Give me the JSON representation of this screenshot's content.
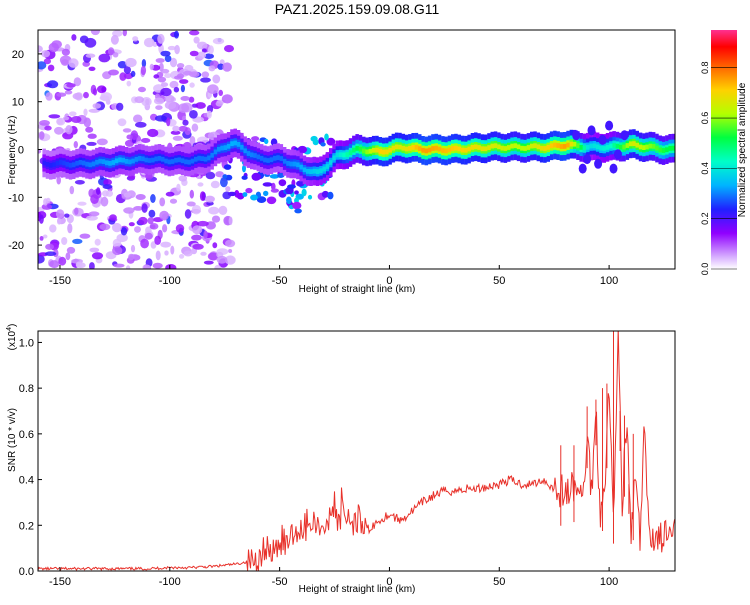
{
  "title": "PAZ1.2025.159.09.08.G11",
  "chart_data": [
    {
      "type": "heatmap",
      "xlabel": "Height of straight line (km)",
      "ylabel": "Frequency (Hz)",
      "xlim": [
        -160,
        130
      ],
      "ylim": [
        -25,
        25
      ],
      "xticks": [
        -150,
        -100,
        -50,
        0,
        50,
        100
      ],
      "yticks": [
        -20,
        -10,
        0,
        10,
        20
      ],
      "colorbar": {
        "label": "Normalized spectral amplitude",
        "range": [
          0,
          0.95
        ],
        "ticks": [
          "0.0",
          "0.2",
          "0.4",
          "0.6",
          "0.8"
        ],
        "tick_values": [
          0.0,
          0.2,
          0.4,
          0.6,
          0.8
        ],
        "colors": [
          "#ffffff",
          "#a000ff",
          "#2020ff",
          "#00c8ff",
          "#00ff80",
          "#c8ff00",
          "#ffd000",
          "#ff6000",
          "#ff0000",
          "#ff40a0"
        ]
      },
      "ridge": [
        {
          "x": -155,
          "f": -3,
          "a": 0.25
        },
        {
          "x": -140,
          "f": -3,
          "a": 0.3
        },
        {
          "x": -125,
          "f": -2.5,
          "a": 0.35
        },
        {
          "x": -110,
          "f": -2,
          "a": 0.3
        },
        {
          "x": -95,
          "f": -2.5,
          "a": 0.3
        },
        {
          "x": -85,
          "f": -2,
          "a": 0.3
        },
        {
          "x": -72,
          "f": 1.5,
          "a": 0.35
        },
        {
          "x": -60,
          "f": -2,
          "a": 0.3
        },
        {
          "x": -50,
          "f": -2,
          "a": 0.3
        },
        {
          "x": -40,
          "f": -4,
          "a": 0.35
        },
        {
          "x": -33,
          "f": -5,
          "a": 0.4
        },
        {
          "x": -25,
          "f": -1.5,
          "a": 0.4
        },
        {
          "x": -15,
          "f": 0,
          "a": 0.55
        },
        {
          "x": -5,
          "f": -0.5,
          "a": 0.75
        },
        {
          "x": 5,
          "f": 0.5,
          "a": 0.7
        },
        {
          "x": 15,
          "f": 0,
          "a": 0.8
        },
        {
          "x": 30,
          "f": 0,
          "a": 0.75
        },
        {
          "x": 45,
          "f": 0.5,
          "a": 0.7
        },
        {
          "x": 60,
          "f": 0.5,
          "a": 0.65
        },
        {
          "x": 72,
          "f": 0.5,
          "a": 0.75
        },
        {
          "x": 80,
          "f": 1,
          "a": 0.8
        },
        {
          "x": 90,
          "f": 0.5,
          "a": 0.4
        },
        {
          "x": 100,
          "f": 0.5,
          "a": 0.45
        },
        {
          "x": 110,
          "f": 1,
          "a": 0.7
        },
        {
          "x": 125,
          "f": 0,
          "a": 0.55
        }
      ]
    },
    {
      "type": "line",
      "xlabel": "Height of straight line (km)",
      "ylabel": "SNR (10 * v/v)",
      "yscale_label": "(x10",
      "yscale_exp": "4",
      "yscale_close": ")",
      "xlim": [
        -160,
        130
      ],
      "ylim": [
        0,
        1.05
      ],
      "xticks": [
        -150,
        -100,
        -50,
        0,
        50,
        100
      ],
      "yticks": [
        "0.0",
        "0.2",
        "0.4",
        "0.6",
        "0.8",
        "1.0"
      ],
      "ytick_values": [
        0.0,
        0.2,
        0.4,
        0.6,
        0.8,
        1.0
      ],
      "color": "#e8312a",
      "x": [
        -160,
        -150,
        -140,
        -130,
        -120,
        -110,
        -100,
        -90,
        -80,
        -70,
        -65,
        -60,
        -55,
        -50,
        -45,
        -40,
        -35,
        -30,
        -25,
        -20,
        -15,
        -10,
        -5,
        0,
        5,
        10,
        15,
        20,
        25,
        30,
        35,
        40,
        45,
        50,
        55,
        60,
        65,
        70,
        75,
        80,
        85,
        88,
        90,
        92,
        94,
        96,
        98,
        100,
        102,
        104,
        106,
        108,
        110,
        112,
        114,
        116,
        118,
        120,
        125,
        130
      ],
      "y": [
        0.01,
        0.01,
        0.01,
        0.01,
        0.01,
        0.01,
        0.015,
        0.015,
        0.02,
        0.03,
        0.04,
        0.05,
        0.08,
        0.12,
        0.14,
        0.18,
        0.2,
        0.22,
        0.24,
        0.22,
        0.2,
        0.18,
        0.22,
        0.25,
        0.22,
        0.26,
        0.3,
        0.33,
        0.35,
        0.35,
        0.36,
        0.36,
        0.37,
        0.38,
        0.4,
        0.38,
        0.38,
        0.4,
        0.36,
        0.34,
        0.37,
        0.3,
        0.6,
        0.35,
        0.7,
        0.25,
        0.4,
        0.8,
        0.2,
        1.05,
        0.3,
        0.65,
        0.15,
        0.42,
        0.12,
        0.6,
        0.2,
        0.15,
        0.15,
        0.15
      ],
      "spikes": [
        {
          "x": 78,
          "y": 0.55
        },
        {
          "x": 84,
          "y": 0.55
        },
        {
          "x": 90,
          "y": 0.72
        },
        {
          "x": 94,
          "y": 0.75
        },
        {
          "x": 97,
          "y": 0.8
        },
        {
          "x": 99,
          "y": 0.82
        },
        {
          "x": 102,
          "y": 1.05
        },
        {
          "x": 105,
          "y": 0.7
        },
        {
          "x": 107,
          "y": 0.68
        },
        {
          "x": 109,
          "y": 0.38
        },
        {
          "x": 111,
          "y": 0.6
        }
      ]
    }
  ]
}
